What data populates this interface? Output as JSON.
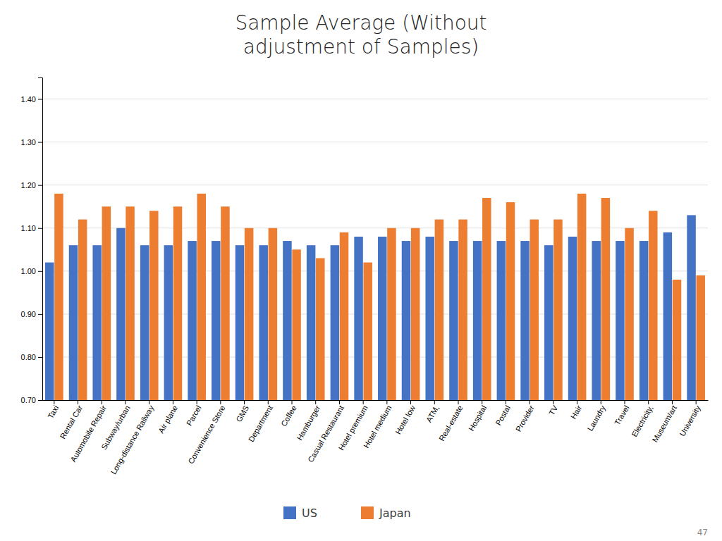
{
  "chart_data": {
    "type": "bar",
    "title": "Sample Average (Without\nadjustment of Samples)",
    "categories": [
      "Taxi",
      "Rental Car",
      "Automobile Repair",
      "Subway/urban",
      "Long-distance Railway",
      "Air plane",
      "Parcel",
      "Convenience Store",
      "GMS",
      "Department",
      "Coffee",
      "Hamburger",
      "Casual Restaurant",
      "Hotel premium",
      "Hotel medium",
      "Hotel low",
      "ATM,",
      "Real-estate",
      "Hospital",
      "Postal",
      "Provider",
      "TV",
      "Hair",
      "Laundry",
      "Travel",
      "Electricity,",
      "Museum/art",
      "University"
    ],
    "series": [
      {
        "name": "US",
        "color": "#4472C4",
        "values": [
          1.02,
          1.06,
          1.06,
          1.1,
          1.06,
          1.06,
          1.07,
          1.07,
          1.06,
          1.06,
          1.07,
          1.06,
          1.06,
          1.08,
          1.08,
          1.07,
          1.08,
          1.07,
          1.07,
          1.07,
          1.07,
          1.06,
          1.08,
          1.07,
          1.07,
          1.07,
          1.09,
          1.13
        ]
      },
      {
        "name": "Japan",
        "color": "#ED7D31",
        "values": [
          1.18,
          1.12,
          1.15,
          1.15,
          1.14,
          1.15,
          1.18,
          1.15,
          1.1,
          1.1,
          1.05,
          1.03,
          1.09,
          1.02,
          1.1,
          1.1,
          1.12,
          1.12,
          1.17,
          1.16,
          1.12,
          1.12,
          1.18,
          1.17,
          1.1,
          1.14,
          0.98,
          0.99
        ]
      }
    ],
    "ylim": [
      0.7,
      1.45
    ],
    "yticks": [
      {
        "value": 0.7,
        "label": "0.70"
      },
      {
        "value": 0.8,
        "label": "0.80"
      },
      {
        "value": 0.9,
        "label": "0.90"
      },
      {
        "value": 1.0,
        "label": "1.00"
      },
      {
        "value": 1.1,
        "label": "1.10"
      },
      {
        "value": 1.2,
        "label": "1.20"
      },
      {
        "value": 1.3,
        "label": "1.30"
      },
      {
        "value": 1.4,
        "label": "1.40"
      }
    ],
    "grid": true,
    "legend": "bottom",
    "annotations": [
      "47"
    ]
  }
}
